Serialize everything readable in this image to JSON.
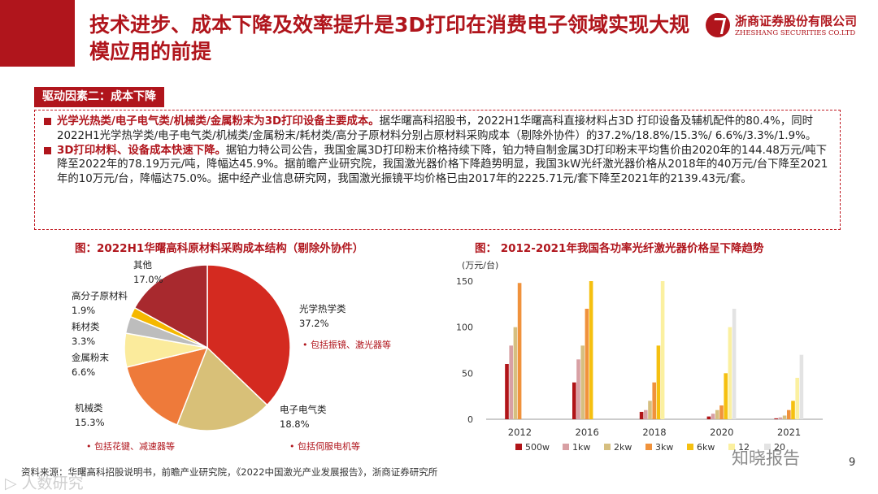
{
  "header": {
    "title": "技术进步、成本下降及效率提升是3D打印在消费电子领域实现大规模应用的前提",
    "logo_cn": "浙商证券股份有限公司",
    "logo_en": "ZHESHANG SECURITIES CO.LTD"
  },
  "section": {
    "tab_label": "驱动因素二：成本下降",
    "bullets": [
      {
        "bold": "光学光热类/电子电气类/机械类/金属粉末为3D打印设备主要成本。",
        "text": "据华曙高科招股书，2022H1华曙高科直接材料占3D 打印设备及辅机配件的80.4%，同时2022H1光学热学类/电子电气类/机械类/金属粉末/耗材类/高分子原材料分别占原材料采购成本（剔除外协件）的37.2%/18.8%/15.3%/ 6.6%/3.3%/1.9%。"
      },
      {
        "bold": "3D打印材料、设备成本快速下降。",
        "text": "据铂力特公司公告，我国金属3D打印粉末价格持续下降，铂力特自制金属3D打印粉末平均售价由2020年的144.48万元/吨下降至2022年的78.19万元/吨，降幅达45.9%。据前瞻产业研究院，我国激光器价格下降趋势明显，我国3kW光纤激光器价格从2018年的40万元/台下降至2021年的10万元/台，降幅达75.0%。据中经产业信息研究网，我国激光振镜平均价格已由2017年的2225.71元/套下降至2021年的2139.43元/套。"
      }
    ]
  },
  "chart_data": [
    {
      "type": "pie",
      "title": "图：2022H1华曙高科原材料采购成本结构（剔除外协件）",
      "slices": [
        {
          "label": "光学热学类",
          "value": 37.2,
          "pct": "37.2%",
          "color": "#d42a20",
          "note": "包括振镜、激光器等"
        },
        {
          "label": "电子电气类",
          "value": 18.8,
          "pct": "18.8%",
          "color": "#d8c078",
          "note": "包括伺服电机等"
        },
        {
          "label": "机械类",
          "value": 15.3,
          "pct": "15.3%",
          "color": "#ee7a3a",
          "note": "包括花键、减速器等"
        },
        {
          "label": "金属粉末",
          "value": 6.6,
          "pct": "6.6%",
          "color": "#fbeb9c",
          "note": ""
        },
        {
          "label": "耗材类",
          "value": 3.3,
          "pct": "3.3%",
          "color": "#bdbdbd",
          "note": ""
        },
        {
          "label": "高分子原材料",
          "value": 1.9,
          "pct": "1.9%",
          "color": "#f5b800",
          "note": ""
        },
        {
          "label": "其他",
          "value": 17.0,
          "pct": "17.0%",
          "color": "#a8292e",
          "note": ""
        }
      ]
    },
    {
      "type": "bar",
      "title": "图： 2012-2021年我国各功率光纤激光器价格呈下降趋势",
      "ylabel": "(万元/台)",
      "ylim": [
        0,
        150
      ],
      "yticks": [
        0,
        50,
        100,
        150
      ],
      "categories": [
        "2012",
        "2016",
        "2018",
        "2020",
        "2021"
      ],
      "series": [
        {
          "name": "500w",
          "color": "#b01418",
          "values": [
            60,
            40,
            8,
            3,
            1
          ]
        },
        {
          "name": "1kw",
          "color": "#d8a0a4",
          "values": [
            80,
            65,
            10,
            6,
            2
          ]
        },
        {
          "name": "2kw",
          "color": "#d6bf80",
          "values": [
            100,
            80,
            20,
            10,
            4
          ]
        },
        {
          "name": "3kw",
          "color": "#f0923c",
          "values": [
            148,
            120,
            40,
            15,
            10
          ]
        },
        {
          "name": "6kw",
          "color": "#f5c010",
          "values": [
            null,
            150,
            80,
            50,
            20
          ]
        },
        {
          "name": "12",
          "color": "#fbf0a0",
          "values": [
            null,
            null,
            150,
            100,
            45
          ]
        },
        {
          "name": "20",
          "color": "#e3e3e3",
          "values": [
            null,
            null,
            null,
            120,
            70
          ]
        }
      ],
      "legend": "bottom"
    }
  ],
  "footer": {
    "source": "资料来源：华曙高科招股说明书，前瞻产业研究院，《2022中国激光产业发展报告》，浙商证券研究所",
    "page": "9",
    "watermark_left": "▷ 人数研究",
    "watermark_right": "知晓报告"
  }
}
